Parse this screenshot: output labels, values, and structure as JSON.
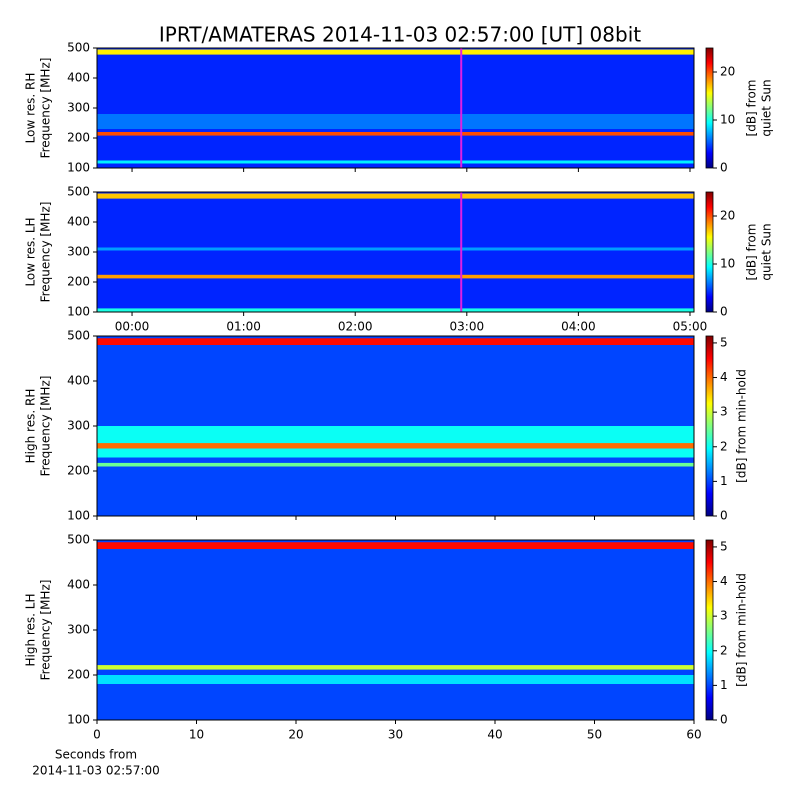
{
  "chart_data": [
    {
      "type": "heatmap",
      "title": "IPRT/AMATERAS 2014-11-03 02:57:00 [UT]   08bit",
      "colormap": "jet",
      "ylabel": [
        "Low res. RH",
        "Frequency [MHz]"
      ],
      "ylim": [
        100,
        500
      ],
      "yticks": [
        100,
        200,
        300,
        400,
        500
      ],
      "xlim": [
        -0.314,
        5.036
      ],
      "marker_x": 2.95,
      "marker_color": "#e020e0",
      "colorbar": {
        "label": [
          "[dB] from",
          "quiet Sun"
        ],
        "lim": [
          0,
          25
        ],
        "ticks": [
          0,
          10,
          20
        ]
      },
      "bands": [
        {
          "fmin": 100,
          "fmax": 500,
          "level": 4
        },
        {
          "fmin": 115,
          "fmax": 125,
          "level": 9
        },
        {
          "fmin": 208,
          "fmax": 220,
          "level": 20
        },
        {
          "fmin": 230,
          "fmax": 280,
          "level": 6
        },
        {
          "fmin": 478,
          "fmax": 495,
          "level": 16
        }
      ]
    },
    {
      "type": "heatmap",
      "colormap": "jet",
      "ylabel": [
        "Low res. LH",
        "Frequency [MHz]"
      ],
      "ylim": [
        100,
        500
      ],
      "yticks": [
        100,
        200,
        300,
        400,
        500
      ],
      "xlim": [
        -0.314,
        5.036
      ],
      "marker_x": 2.95,
      "marker_color": "#e020e0",
      "xticks": [
        {
          "value": 0,
          "label": "00:00"
        },
        {
          "value": 1,
          "label": "01:00"
        },
        {
          "value": 2,
          "label": "02:00"
        },
        {
          "value": 3,
          "label": "03:00"
        },
        {
          "value": 4,
          "label": "04:00"
        },
        {
          "value": 5,
          "label": "05:00"
        }
      ],
      "colorbar": {
        "label": [
          "[dB] from",
          "quiet Sun"
        ],
        "lim": [
          0,
          25
        ],
        "ticks": [
          0,
          10,
          20
        ]
      },
      "bands": [
        {
          "fmin": 100,
          "fmax": 500,
          "level": 4
        },
        {
          "fmin": 100,
          "fmax": 112,
          "level": 10
        },
        {
          "fmin": 212,
          "fmax": 224,
          "level": 18
        },
        {
          "fmin": 305,
          "fmax": 315,
          "level": 7
        },
        {
          "fmin": 478,
          "fmax": 495,
          "level": 17
        }
      ]
    },
    {
      "type": "heatmap",
      "colormap": "jet",
      "ylabel": [
        "High res. RH",
        "Frequency [MHz]"
      ],
      "ylim": [
        100,
        500
      ],
      "yticks": [
        100,
        200,
        300,
        400,
        500
      ],
      "xlim": [
        0,
        60
      ],
      "colorbar": {
        "label": [
          "[dB] from min-hold"
        ],
        "lim": [
          0,
          5.2
        ],
        "ticks": [
          0,
          1,
          2,
          3,
          4,
          5
        ]
      },
      "bands": [
        {
          "fmin": 100,
          "fmax": 500,
          "level": 1
        },
        {
          "fmin": 210,
          "fmax": 218,
          "level": 2.5
        },
        {
          "fmin": 230,
          "fmax": 300,
          "level": 2
        },
        {
          "fmin": 250,
          "fmax": 262,
          "level": 4
        },
        {
          "fmin": 480,
          "fmax": 495,
          "level": 4.5
        }
      ]
    },
    {
      "type": "heatmap",
      "colormap": "jet",
      "ylabel": [
        "High res. LH",
        "Frequency [MHz]"
      ],
      "ylim": [
        100,
        500
      ],
      "yticks": [
        100,
        200,
        300,
        400,
        500
      ],
      "xlim": [
        0,
        60
      ],
      "xticks": [
        0,
        10,
        20,
        30,
        40,
        50,
        60
      ],
      "xlabel": [
        "Seconds from",
        "2014-11-03 02:57:00"
      ],
      "colorbar": {
        "label": [
          "[dB] from min-hold"
        ],
        "lim": [
          0,
          5.2
        ],
        "ticks": [
          0,
          1,
          2,
          3,
          4,
          5
        ]
      },
      "bands": [
        {
          "fmin": 100,
          "fmax": 500,
          "level": 1
        },
        {
          "fmin": 180,
          "fmax": 200,
          "level": 1.8
        },
        {
          "fmin": 212,
          "fmax": 222,
          "level": 3
        },
        {
          "fmin": 480,
          "fmax": 495,
          "level": 4.5
        }
      ]
    }
  ]
}
